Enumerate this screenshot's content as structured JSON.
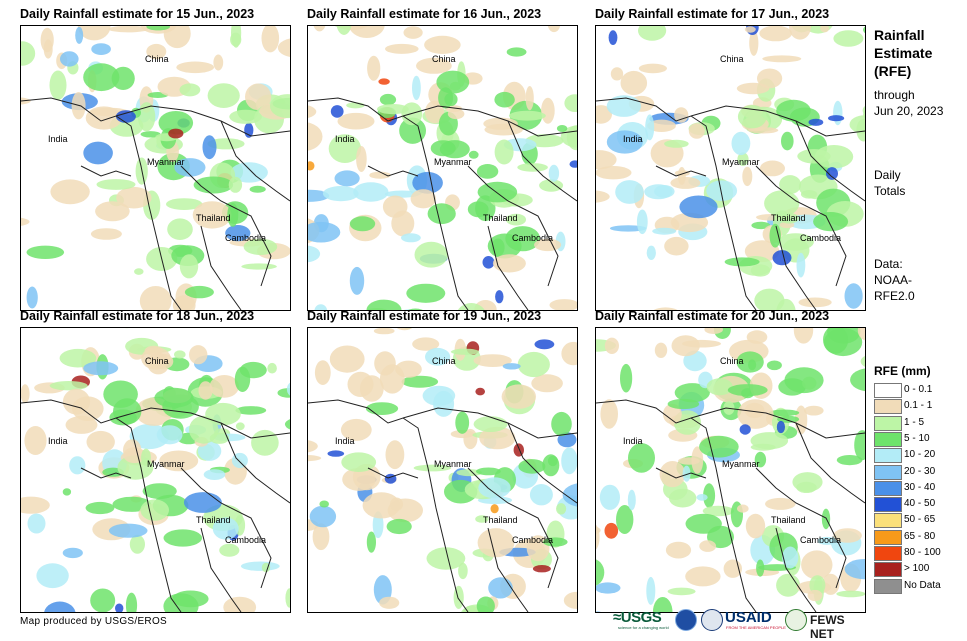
{
  "panels": [
    {
      "title": "Daily Rainfall estimate for 15 Jun., 2023"
    },
    {
      "title": "Daily Rainfall estimate for 16 Jun., 2023"
    },
    {
      "title": "Daily Rainfall estimate for 17 Jun., 2023"
    },
    {
      "title": "Daily Rainfall estimate for 18 Jun., 2023"
    },
    {
      "title": "Daily Rainfall estimate for 19 Jun., 2023"
    },
    {
      "title": "Daily Rainfall estimate for 20 Jun., 2023"
    }
  ],
  "map_labels": {
    "china": "China",
    "india": "India",
    "myanmar": "Myanmar",
    "thailand": "Thailand",
    "cambodia": "Cambodia"
  },
  "sidebar": {
    "title": [
      "Rainfall",
      "Estimate",
      "(RFE)"
    ],
    "through": "through",
    "date": "Jun 20, 2023",
    "daily": "Daily",
    "totals": "Totals",
    "data_label": "Data:",
    "data_source_1": "NOAA-",
    "data_source_2": "RFE2.0"
  },
  "legend": {
    "title": "RFE (mm)",
    "items": [
      {
        "label": "0 - 0.1",
        "color": "#ffffff"
      },
      {
        "label": "0.1 - 1",
        "color": "#f1dcb9"
      },
      {
        "label": "1 - 5",
        "color": "#bdf5a6"
      },
      {
        "label": "5 - 10",
        "color": "#6ee36b"
      },
      {
        "label": "10 - 20",
        "color": "#b3ecf7"
      },
      {
        "label": "20 - 30",
        "color": "#7fc3f4"
      },
      {
        "label": "30 - 40",
        "color": "#4a90e8"
      },
      {
        "label": "40 - 50",
        "color": "#2251d6"
      },
      {
        "label": "50 - 65",
        "color": "#fbe07a"
      },
      {
        "label": "65 - 80",
        "color": "#f79a1a"
      },
      {
        "label": "80 - 100",
        "color": "#f0460f"
      },
      {
        "label": "> 100",
        "color": "#a8211e"
      },
      {
        "label": "No Data",
        "color": "#8f8f8f"
      }
    ]
  },
  "footer": {
    "credit": "Map produced by USGS/EROS"
  },
  "logos": {
    "usgs": "≈USGS",
    "usgs_tagline": "science for a changing world",
    "usaid": "USAID",
    "usaid_tagline": "FROM THE AMERICAN PEOPLE",
    "fews": "FEWS NET"
  }
}
